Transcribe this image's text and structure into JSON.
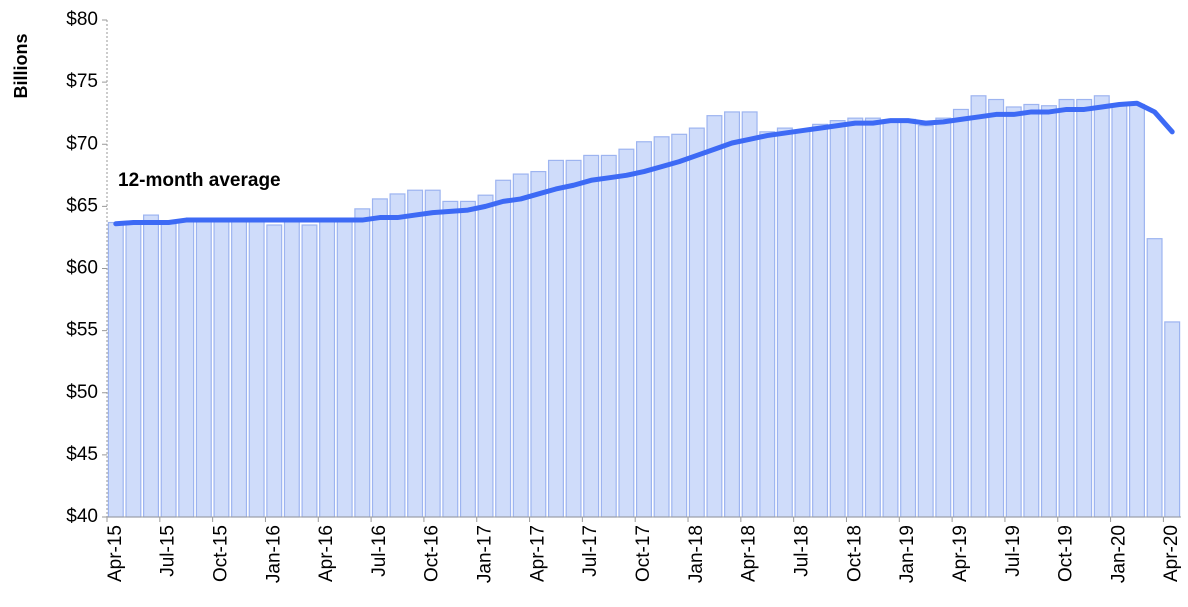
{
  "chart_data": {
    "type": "bar-line",
    "y_label": "Billions",
    "categories": [
      "Apr-15",
      null,
      null,
      "Jul-15",
      null,
      null,
      "Oct-15",
      null,
      null,
      "Jan-16",
      null,
      null,
      "Apr-16",
      null,
      null,
      "Jul-16",
      null,
      null,
      "Oct-16",
      null,
      null,
      "Jan-17",
      null,
      null,
      "Apr-17",
      null,
      null,
      "Jul-17",
      null,
      null,
      "Oct-17",
      null,
      null,
      "Jan-18",
      null,
      null,
      "Apr-18",
      null,
      null,
      "Jul-18",
      null,
      null,
      "Oct-18",
      null,
      null,
      "Jan-19",
      null,
      null,
      "Apr-19",
      null,
      null,
      "Jul-19",
      null,
      null,
      "Oct-19",
      null,
      null,
      "Jan-20",
      null,
      null,
      "Apr-20"
    ],
    "series": [
      {
        "kind": "bar",
        "color": "#cfdcfa",
        "edge_color": "#9db4f0",
        "values": [
          63.7,
          63.6,
          64.3,
          63.6,
          63.9,
          63.9,
          63.9,
          63.9,
          63.8,
          63.5,
          63.8,
          63.5,
          63.9,
          63.8,
          64.8,
          65.6,
          66.0,
          66.3,
          66.3,
          65.4,
          65.4,
          65.9,
          67.1,
          67.6,
          67.8,
          68.7,
          68.7,
          69.1,
          69.1,
          69.6,
          70.2,
          70.6,
          70.8,
          71.3,
          72.3,
          72.6,
          72.6,
          71.0,
          71.3,
          71.1,
          71.6,
          71.9,
          72.1,
          72.1,
          71.9,
          72.0,
          71.5,
          72.1,
          72.8,
          73.9,
          73.6,
          73.0,
          73.2,
          73.1,
          73.6,
          73.6,
          73.9,
          73.1,
          73.2,
          62.4,
          55.7
        ]
      },
      {
        "kind": "line",
        "name": "12-month average",
        "color": "#3d6af5",
        "values": [
          63.6,
          63.7,
          63.7,
          63.7,
          63.9,
          63.9,
          63.9,
          63.9,
          63.9,
          63.9,
          63.9,
          63.9,
          63.9,
          63.9,
          63.9,
          64.1,
          64.1,
          64.3,
          64.5,
          64.6,
          64.7,
          65.0,
          65.4,
          65.6,
          66.0,
          66.4,
          66.7,
          67.1,
          67.3,
          67.5,
          67.8,
          68.2,
          68.6,
          69.1,
          69.6,
          70.1,
          70.4,
          70.7,
          70.9,
          71.1,
          71.3,
          71.5,
          71.7,
          71.7,
          71.9,
          71.9,
          71.7,
          71.8,
          72.0,
          72.2,
          72.4,
          72.4,
          72.6,
          72.6,
          72.8,
          72.8,
          73.0,
          73.2,
          73.3,
          72.6,
          71.0
        ]
      }
    ],
    "ylim": [
      40,
      80
    ],
    "yticks": [
      {
        "value": 40,
        "label": "$40"
      },
      {
        "value": 45,
        "label": "$45"
      },
      {
        "value": 50,
        "label": "$50"
      },
      {
        "value": 55,
        "label": "$55"
      },
      {
        "value": 60,
        "label": "$60"
      },
      {
        "value": 65,
        "label": "$65"
      },
      {
        "value": 70,
        "label": "$70"
      },
      {
        "value": 75,
        "label": "$75"
      },
      {
        "value": 80,
        "label": "$80"
      }
    ]
  }
}
